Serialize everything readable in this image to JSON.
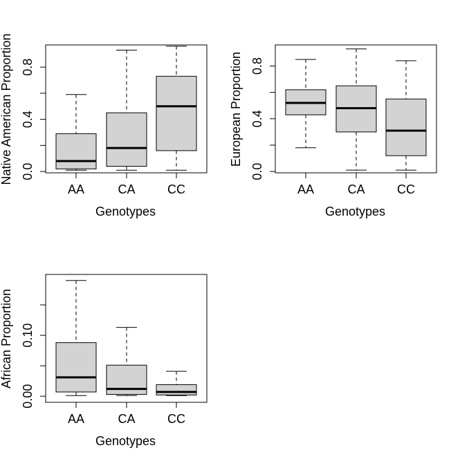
{
  "chart_data": [
    {
      "type": "box",
      "xlabel": "Genotypes",
      "ylabel": "Native American Proportion",
      "ylim": [
        -0.01,
        0.97
      ],
      "yticks": [
        0.0,
        0.2,
        0.4,
        0.6,
        0.8
      ],
      "ytick_labels": [
        "0.0",
        "",
        "0.4",
        "",
        "0.8"
      ],
      "categories": [
        "AA",
        "CA",
        "CC"
      ],
      "boxes": [
        {
          "whisker_low": 0.01,
          "q1": 0.02,
          "median": 0.08,
          "q3": 0.29,
          "whisker_high": 0.59
        },
        {
          "whisker_low": 0.01,
          "q1": 0.04,
          "median": 0.18,
          "q3": 0.45,
          "whisker_high": 0.93
        },
        {
          "whisker_low": 0.01,
          "q1": 0.16,
          "median": 0.5,
          "q3": 0.73,
          "whisker_high": 0.96
        }
      ]
    },
    {
      "type": "box",
      "xlabel": "Genotypes",
      "ylabel": "European Proportion",
      "ylim": [
        -0.01,
        0.96
      ],
      "yticks": [
        0.0,
        0.2,
        0.4,
        0.6,
        0.8
      ],
      "ytick_labels": [
        "0.0",
        "",
        "0.4",
        "",
        "0.8"
      ],
      "categories": [
        "AA",
        "CA",
        "CC"
      ],
      "boxes": [
        {
          "whisker_low": 0.18,
          "q1": 0.43,
          "median": 0.52,
          "q3": 0.62,
          "whisker_high": 0.85
        },
        {
          "whisker_low": 0.01,
          "q1": 0.3,
          "median": 0.48,
          "q3": 0.65,
          "whisker_high": 0.93
        },
        {
          "whisker_low": 0.01,
          "q1": 0.12,
          "median": 0.31,
          "q3": 0.55,
          "whisker_high": 0.84
        }
      ]
    },
    {
      "type": "box",
      "xlabel": "Genotypes",
      "ylabel": "African Proportion",
      "ylim": [
        -0.01,
        0.2
      ],
      "yticks": [
        0.0,
        0.05,
        0.1,
        0.15
      ],
      "ytick_labels": [
        "0.00",
        "",
        "0.10",
        ""
      ],
      "categories": [
        "AA",
        "CA",
        "CC"
      ],
      "boxes": [
        {
          "whisker_low": 0.001,
          "q1": 0.007,
          "median": 0.031,
          "q3": 0.088,
          "whisker_high": 0.19
        },
        {
          "whisker_low": 0.001,
          "q1": 0.003,
          "median": 0.012,
          "q3": 0.051,
          "whisker_high": 0.113
        },
        {
          "whisker_low": 0.001,
          "q1": 0.002,
          "median": 0.007,
          "q3": 0.019,
          "whisker_high": 0.041
        }
      ]
    }
  ],
  "colors": {
    "box_fill": "#d3d3d3",
    "stroke": "#000000"
  }
}
